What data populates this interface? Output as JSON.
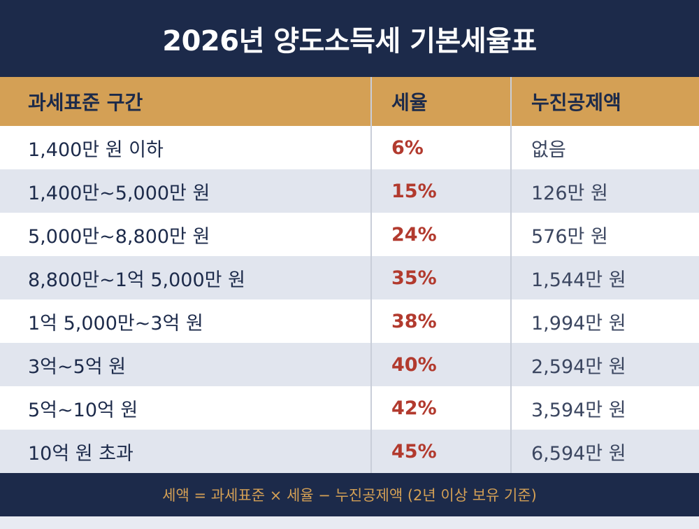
{
  "title": "2026년 양도소득세 기본세율표",
  "headers": {
    "range": "과세표준 구간",
    "rate": "세율",
    "deduction": "누진공제액"
  },
  "rows": [
    {
      "range": "1,400만 원 이하",
      "rate": "6%",
      "deduction": "없음"
    },
    {
      "range": "1,400만~5,000만 원",
      "rate": "15%",
      "deduction": "126만 원"
    },
    {
      "range": "5,000만~8,800만 원",
      "rate": "24%",
      "deduction": "576만 원"
    },
    {
      "range": "8,800만~1억 5,000만 원",
      "rate": "35%",
      "deduction": "1,544만 원"
    },
    {
      "range": "1억 5,000만~3억 원",
      "rate": "38%",
      "deduction": "1,994만 원"
    },
    {
      "range": "3억~5억 원",
      "rate": "40%",
      "deduction": "2,594만 원"
    },
    {
      "range": "5억~10억 원",
      "rate": "42%",
      "deduction": "3,594만 원"
    },
    {
      "range": "10억 원 초과",
      "rate": "45%",
      "deduction": "6,594만 원"
    }
  ],
  "footer": "세액 = 과세표준 × 세율 − 누진공제액 (2년 이상 보유 기준)",
  "colors": {
    "navy": "#1c2a4a",
    "gold": "#d4a055",
    "rate_red": "#b23a2e"
  }
}
